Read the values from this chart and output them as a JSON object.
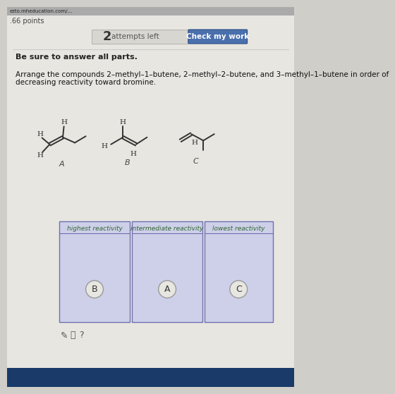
{
  "bg_color": "#d0cec8",
  "content_bg": "#e8e6e0",
  "title_bar_text": "ezto.mheducation.com/...",
  "points_text": ".66 points",
  "check_button_text": "Check my work",
  "check_button_color": "#4a6fad",
  "instruction_text": "Be sure to answer all parts.",
  "question_line1": "Arrange the compounds 2–methyl–1–butene, 2–methyl–2–butene, and 3–methyl–1–butene in order of",
  "question_line2": "decreasing reactivity toward bromine.",
  "molecule_labels": [
    "A",
    "B",
    "C"
  ],
  "box_headers": [
    "highest reactivity",
    "intermediate reactivity",
    "lowest reactivity"
  ],
  "box_contents": [
    "B",
    "A",
    "C"
  ],
  "box_border_color": "#7070b0",
  "box_bg_color": "#cdd0e8",
  "header_color": "#336633",
  "circle_color": "#e8e6e0",
  "circle_border": "#999999",
  "mol_color": "#333333",
  "mol_lw": 1.4
}
